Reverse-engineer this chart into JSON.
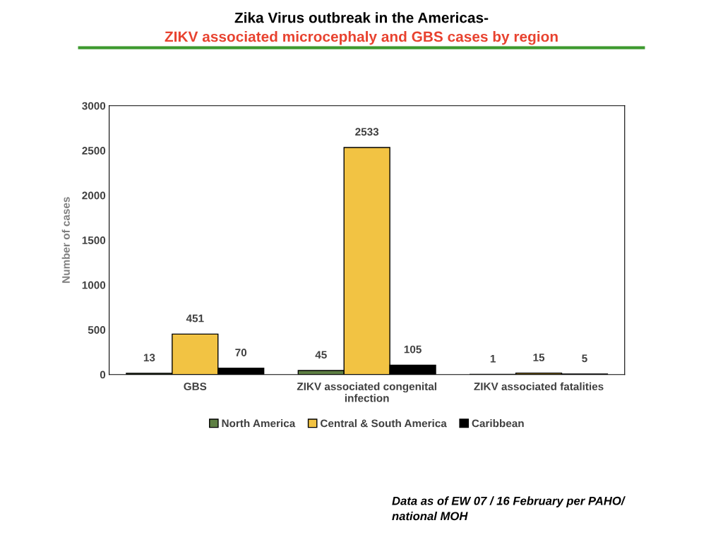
{
  "chart_data": {
    "type": "bar",
    "title": "Zika Virus outbreak in the Americas-",
    "subtitle": "ZIKV associated microcephaly and GBS cases by region",
    "ylabel": "Number of cases",
    "categories": [
      "GBS",
      "ZIKV associated congenital\ninfection",
      "ZIKV associated fatalities"
    ],
    "series": [
      {
        "name": "North America",
        "color": "#5e7f43",
        "values": [
          13,
          45,
          1
        ]
      },
      {
        "name": "Central & South America",
        "color": "#f2c343",
        "values": [
          451,
          2533,
          15
        ]
      },
      {
        "name": "Caribbean",
        "color": "#000000",
        "values": [
          70,
          105,
          5
        ]
      }
    ],
    "ylim": [
      0,
      3000
    ],
    "yticks": [
      0,
      500,
      1000,
      1500,
      2000,
      2500,
      3000
    ],
    "grid": false,
    "legend": "bottom",
    "data_labels": true,
    "annotations": [
      "Data as of EW 07 / 16 February per PAHO/\nnational MOH"
    ]
  }
}
